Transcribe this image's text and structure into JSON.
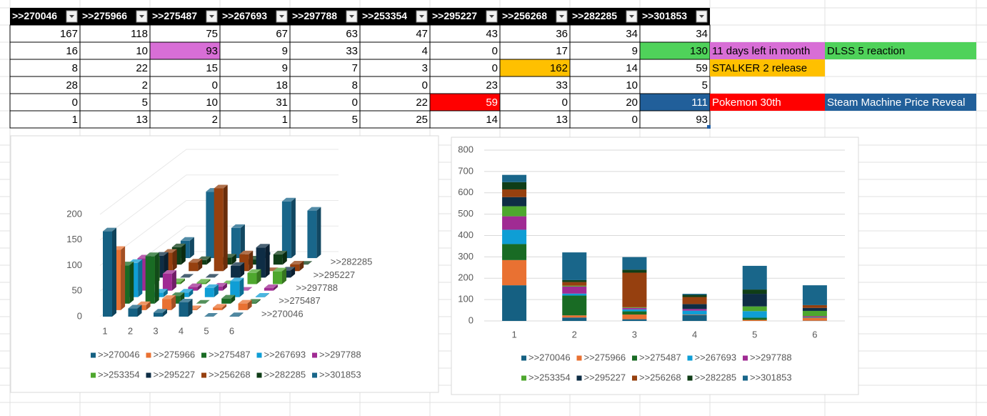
{
  "side_notes": [
    [],
    [
      "11 days left in month",
      "DLSS 5 reaction"
    ],
    [
      "STALKER 2 release"
    ],
    [],
    [
      "Pokemon 30th",
      "Steam Machine Price Reveal"
    ],
    []
  ],
  "chart_data": [
    {
      "type": "bar3d",
      "categories": [
        "1",
        "2",
        "3",
        "4",
        "5",
        "6"
      ],
      "series": [
        {
          "name": ">>270046",
          "color": "#156082",
          "values": [
            167,
            16,
            8,
            28,
            0,
            1
          ]
        },
        {
          "name": ">>275966",
          "color": "#E97132",
          "values": [
            118,
            10,
            22,
            2,
            5,
            13
          ]
        },
        {
          "name": ">>275487",
          "color": "#196B24",
          "values": [
            75,
            93,
            15,
            0,
            10,
            2
          ]
        },
        {
          "name": ">>267693",
          "color": "#0F9ED5",
          "values": [
            67,
            9,
            9,
            18,
            31,
            1
          ]
        },
        {
          "name": ">>297788",
          "color": "#A02B93",
          "values": [
            63,
            33,
            7,
            8,
            0,
            5
          ]
        },
        {
          "name": ">>253354",
          "color": "#4EA72E",
          "values": [
            47,
            4,
            3,
            0,
            22,
            25
          ]
        },
        {
          "name": ">>295227",
          "color": "#0E2D45",
          "values": [
            43,
            0,
            0,
            23,
            59,
            14
          ]
        },
        {
          "name": ">>256268",
          "color": "#96400F",
          "values": [
            36,
            17,
            162,
            33,
            0,
            13
          ]
        },
        {
          "name": ">>282285",
          "color": "#0F3D17",
          "values": [
            34,
            9,
            14,
            10,
            20,
            0
          ]
        },
        {
          "name": ">>301853",
          "color": "#19668A",
          "values": [
            34,
            130,
            59,
            5,
            111,
            93
          ]
        }
      ],
      "ylim": [
        0,
        200
      ],
      "yticks": [
        0,
        50,
        100,
        150,
        200
      ],
      "grid": true,
      "legend": "bottom"
    },
    {
      "type": "stacked_bar",
      "categories": [
        "1",
        "2",
        "3",
        "4",
        "5",
        "6"
      ],
      "series": [
        {
          "name": ">>270046",
          "color": "#156082",
          "values": [
            167,
            16,
            8,
            28,
            0,
            1
          ]
        },
        {
          "name": ">>275966",
          "color": "#E97132",
          "values": [
            118,
            10,
            22,
            2,
            5,
            13
          ]
        },
        {
          "name": ">>275487",
          "color": "#196B24",
          "values": [
            75,
            93,
            15,
            0,
            10,
            2
          ]
        },
        {
          "name": ">>267693",
          "color": "#0F9ED5",
          "values": [
            67,
            9,
            9,
            18,
            31,
            1
          ]
        },
        {
          "name": ">>297788",
          "color": "#A02B93",
          "values": [
            63,
            33,
            7,
            8,
            0,
            5
          ]
        },
        {
          "name": ">>253354",
          "color": "#4EA72E",
          "values": [
            47,
            4,
            3,
            0,
            22,
            25
          ]
        },
        {
          "name": ">>295227",
          "color": "#0E2D45",
          "values": [
            43,
            0,
            0,
            23,
            59,
            14
          ]
        },
        {
          "name": ">>256268",
          "color": "#96400F",
          "values": [
            36,
            17,
            162,
            33,
            0,
            13
          ]
        },
        {
          "name": ">>282285",
          "color": "#0F3D17",
          "values": [
            34,
            9,
            14,
            10,
            20,
            0
          ]
        },
        {
          "name": ">>301853",
          "color": "#19668A",
          "values": [
            34,
            130,
            59,
            5,
            111,
            93
          ]
        }
      ],
      "ylim": [
        0,
        800
      ],
      "yticks": [
        0,
        100,
        200,
        300,
        400,
        500,
        600,
        700,
        800
      ],
      "grid": true,
      "legend": "bottom"
    }
  ]
}
